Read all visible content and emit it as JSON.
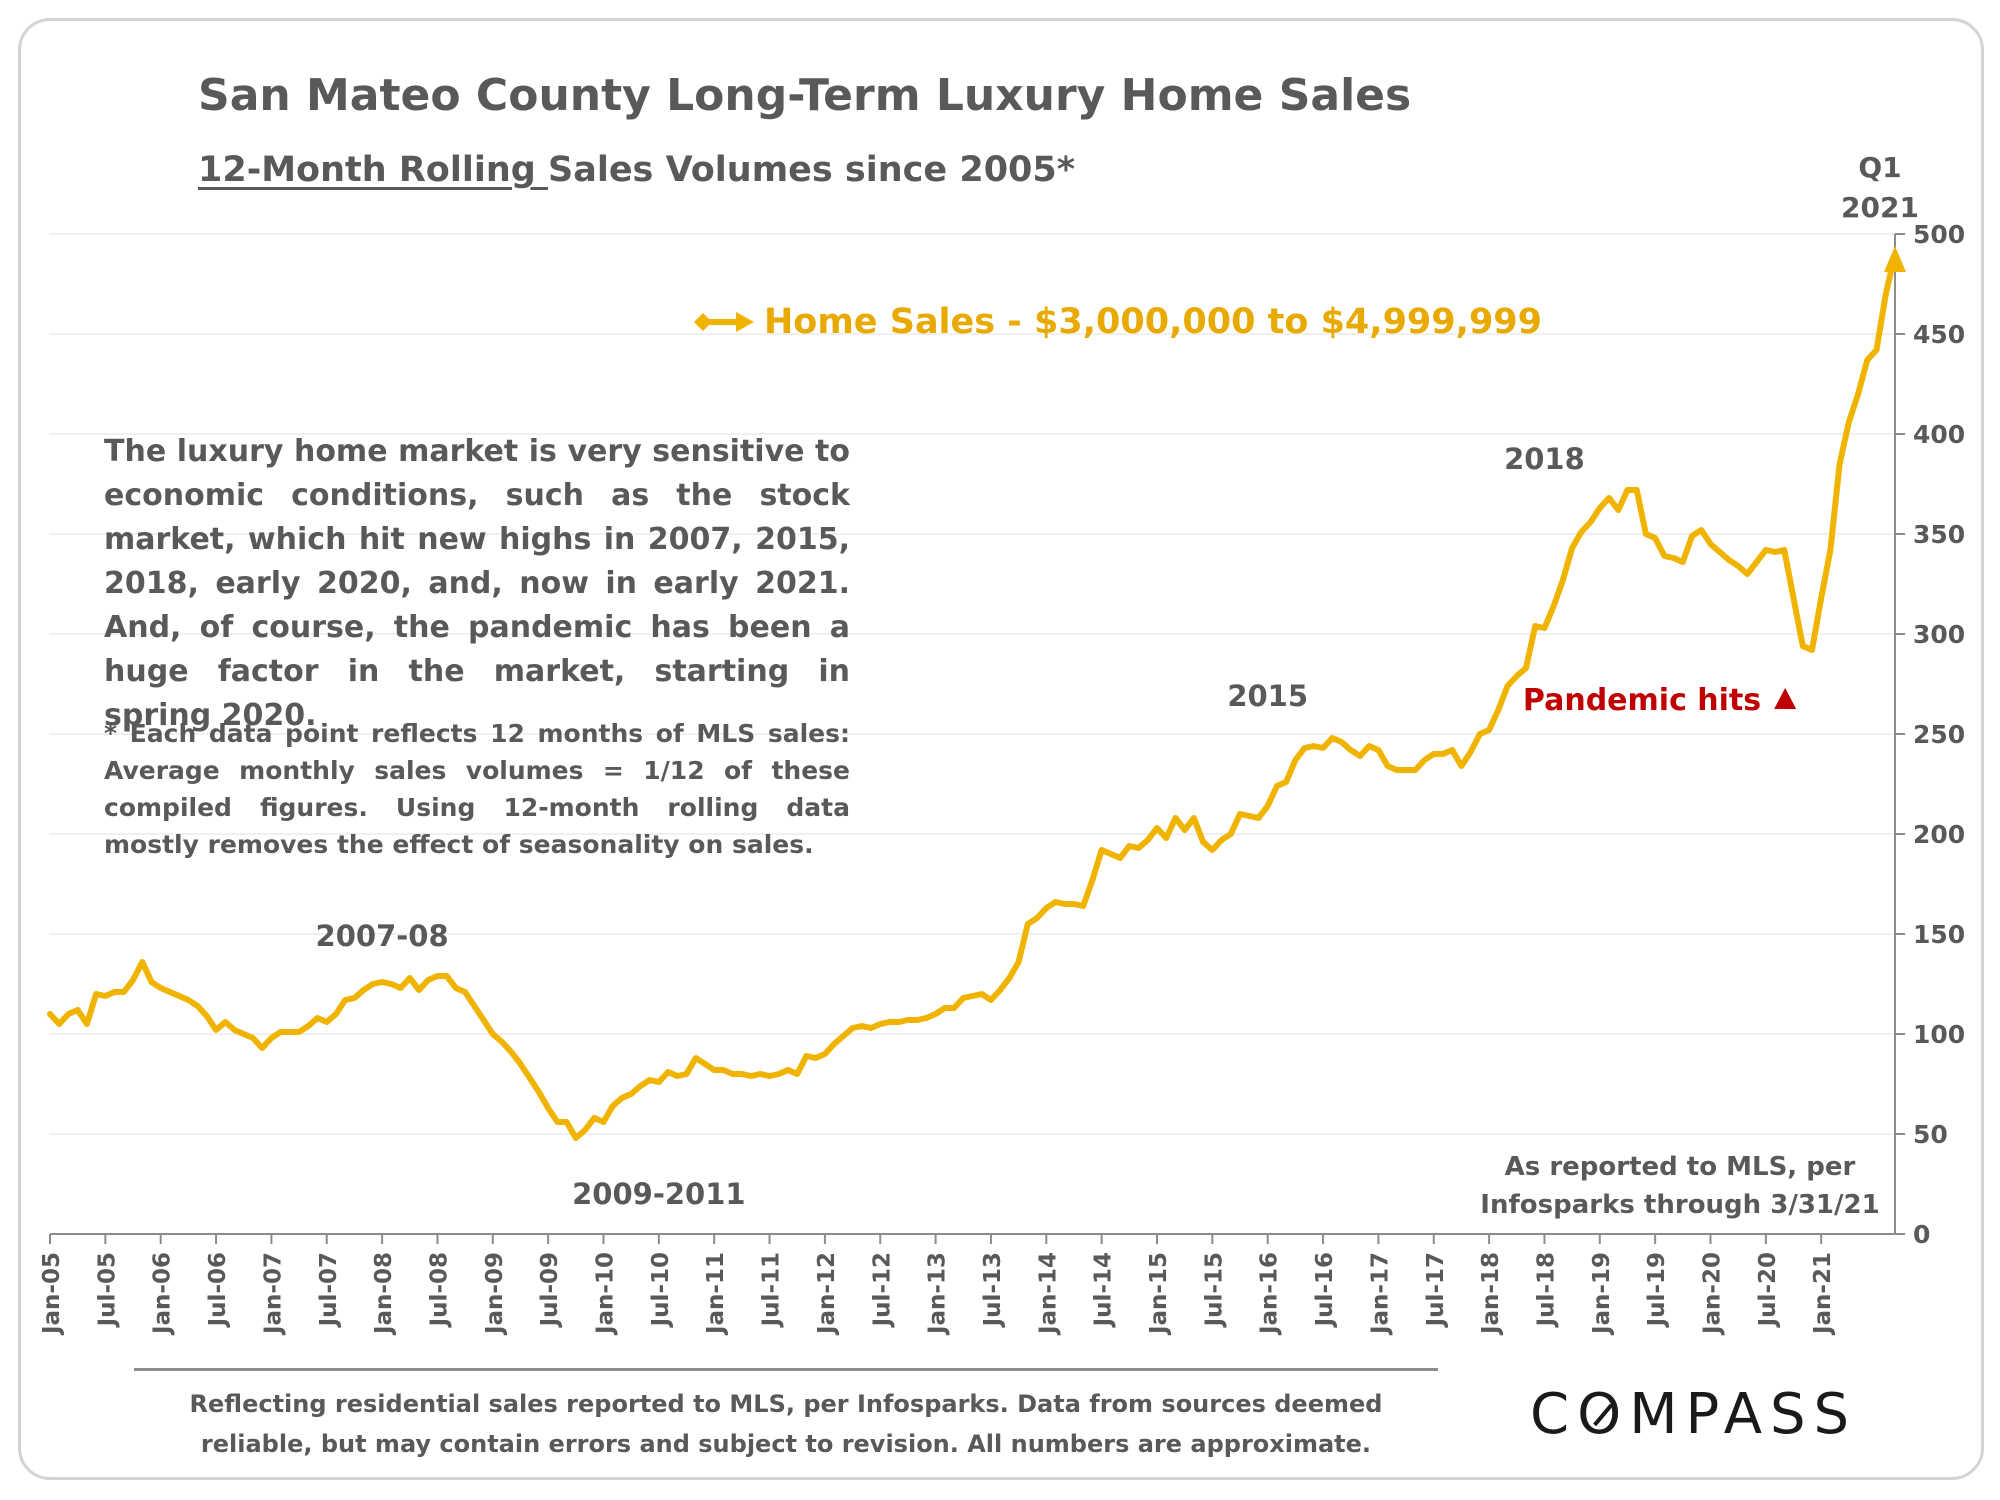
{
  "title": "San Mateo County Long-Term Luxury Home Sales",
  "subtitle_underlined": "12-Month Rolling ",
  "subtitle_rest": "Sales Volumes since 2005*",
  "q1_label_line1": "Q1",
  "q1_label_line2": "2021",
  "paragraph": "The luxury home market is very sensitive to economic conditions, such as the stock market, which hit new highs in 2007, 2015, 2018, early 2020, and, now in early 2021. And, of course, the pandemic has been a huge factor in the market, starting in spring 2020.",
  "footnote": "* Each data point reflects 12 months of MLS sales: Average monthly sales volumes = 1/12 of these compiled figures. Using 12-month rolling data mostly removes the effect of seasonality on sales.",
  "source_note_line1": "As reported to MLS, per",
  "source_note_line2": "Infosparks through 3/31/21",
  "footer_line1": "Reflecting residential sales reported to MLS, per Infosparks. Data from sources deemed",
  "footer_line2": "reliable, but may contain errors and subject to revision. All numbers are approximate.",
  "logo_prefix": "C",
  "logo_ring": "O",
  "logo_suffix": "MPASS",
  "colors": {
    "series": "#f0b400",
    "legend_text": "#e8a900",
    "pandemic": "#c00000",
    "text": "#595959"
  },
  "chart_data": {
    "type": "line",
    "x_label_step_months": 6,
    "xticks": [
      "Jan-05",
      "Jul-05",
      "Jan-06",
      "Jul-06",
      "Jan-07",
      "Jul-07",
      "Jan-08",
      "Jul-08",
      "Jan-09",
      "Jul-09",
      "Jan-10",
      "Jul-10",
      "Jan-11",
      "Jul-11",
      "Jan-12",
      "Jul-12",
      "Jan-13",
      "Jul-13",
      "Jan-14",
      "Jul-14",
      "Jan-15",
      "Jul-15",
      "Jan-16",
      "Jul-16",
      "Jan-17",
      "Jul-17",
      "Jan-18",
      "Jul-18",
      "Jan-19",
      "Jul-19",
      "Jan-20",
      "Jul-20",
      "Jan-21"
    ],
    "yticks": [
      0,
      50,
      100,
      150,
      200,
      250,
      300,
      350,
      400,
      450,
      500
    ],
    "ylim": [
      0,
      500
    ],
    "y_axis_position": "right",
    "grid": true,
    "legend_position": "top-center",
    "series": [
      {
        "name": "Home Sales - $3,000,000 to $4,999,999",
        "x_start": "Jan-05",
        "x_end": "Mar-21",
        "values": [
          110,
          105,
          110,
          112,
          105,
          120,
          119,
          121,
          121,
          127,
          136,
          126,
          123,
          121,
          119,
          117,
          114,
          109,
          102,
          106,
          102,
          100,
          98,
          93,
          98,
          101,
          101,
          101,
          104,
          108,
          106,
          110,
          117,
          118,
          122,
          125,
          126,
          125,
          123,
          128,
          122,
          127,
          129,
          129,
          123,
          121,
          114,
          107,
          100,
          96,
          91,
          85,
          78,
          71,
          63,
          56,
          56,
          48,
          52,
          58,
          56,
          64,
          68,
          70,
          74,
          77,
          76,
          81,
          79,
          80,
          88,
          85,
          82,
          82,
          80,
          80,
          79,
          80,
          79,
          80,
          82,
          80,
          89,
          88,
          90,
          95,
          99,
          103,
          104,
          103,
          105,
          106,
          106,
          107,
          107,
          108,
          110,
          113,
          113,
          118,
          119,
          120,
          117,
          122,
          128,
          136,
          155,
          158,
          163,
          166,
          165,
          165,
          164,
          177,
          192,
          190,
          188,
          194,
          193,
          197,
          203,
          198,
          208,
          202,
          208,
          196,
          192,
          197,
          200,
          210,
          209,
          208,
          214,
          224,
          226,
          237,
          243,
          244,
          243,
          248,
          246,
          242,
          239,
          244,
          242,
          234,
          232,
          232,
          232,
          237,
          240,
          240,
          242,
          234,
          241,
          250,
          252,
          262,
          274,
          279,
          283,
          304,
          303,
          314,
          327,
          343,
          351,
          356,
          363,
          368,
          362,
          372,
          372,
          350,
          348,
          339,
          338,
          336,
          349,
          352,
          345,
          341,
          337,
          334,
          330,
          336,
          342,
          341,
          342,
          318,
          294,
          292,
          318,
          342,
          385,
          406,
          420,
          437,
          442,
          470,
          490
        ]
      }
    ],
    "annotations": [
      {
        "text": "2007-08",
        "x": "Jan-08",
        "y": 130
      },
      {
        "text": "2009-2011",
        "x": "Jul-10",
        "y": 50
      },
      {
        "text": "2015",
        "x": "Jan-16",
        "y": 250
      },
      {
        "text": "2018",
        "x": "Jul-18",
        "y": 370
      },
      {
        "text": "Pandemic hits",
        "x": "Jul-19",
        "y": 262,
        "marker": "triangle-up"
      }
    ]
  }
}
